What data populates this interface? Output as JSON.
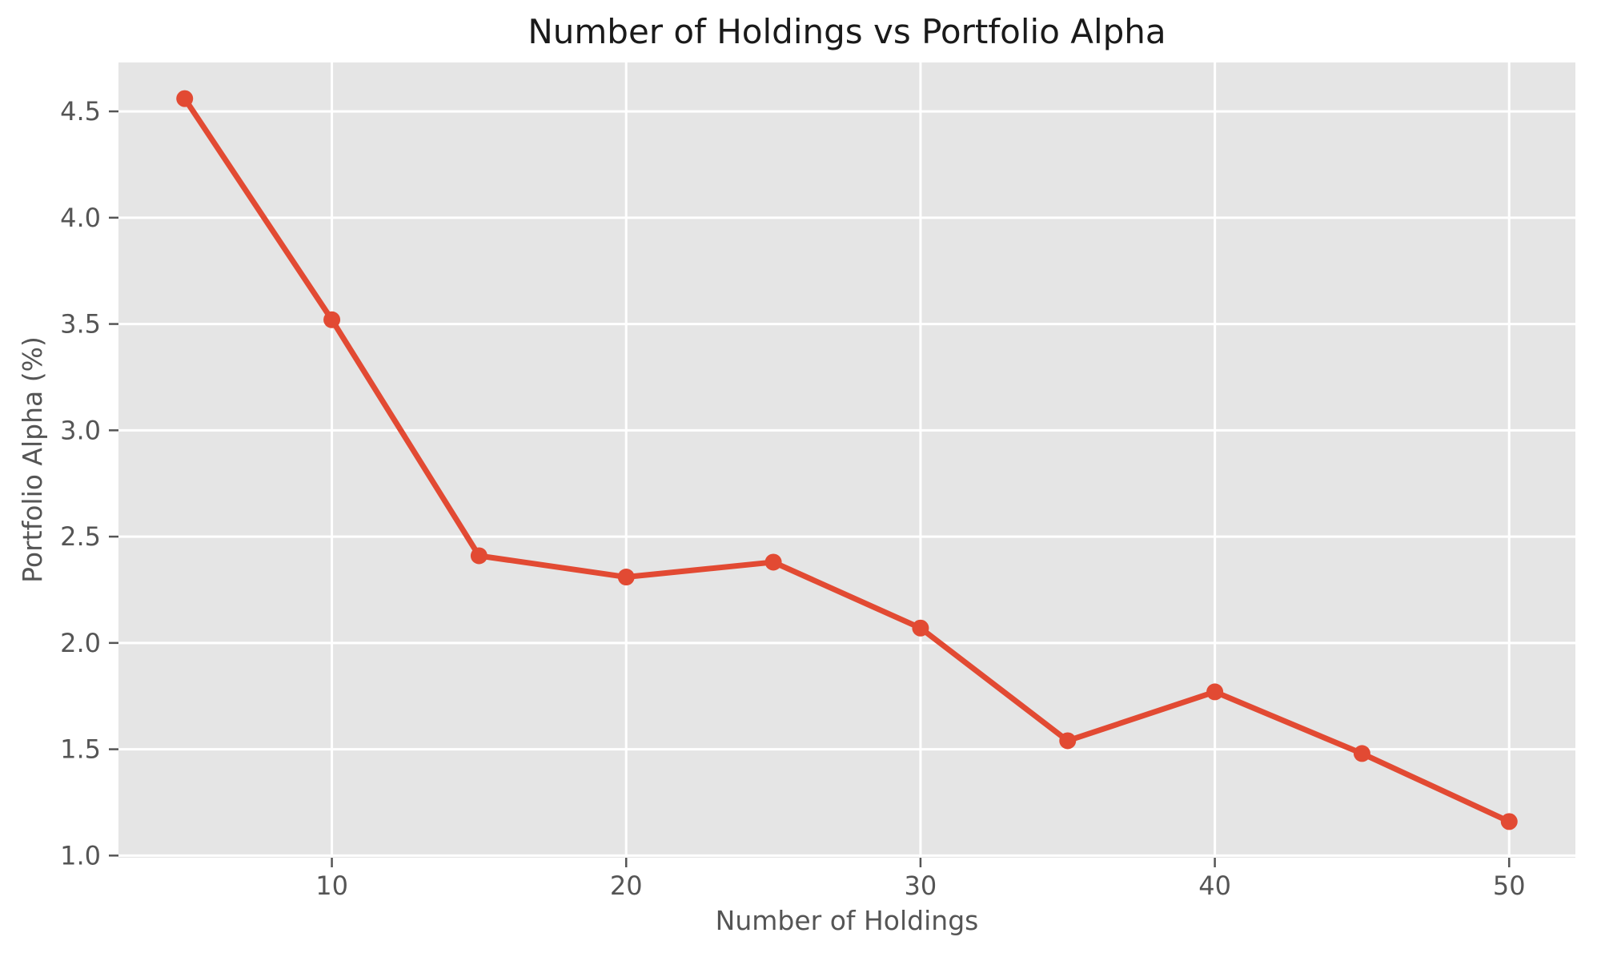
{
  "chart_data": {
    "type": "line",
    "title": "Number of Holdings vs Portfolio Alpha",
    "xlabel": "Number of Holdings",
    "ylabel": "Portfolio Alpha (%)",
    "series": [
      {
        "name": "Portfolio Alpha",
        "x": [
          5,
          10,
          15,
          20,
          25,
          30,
          35,
          40,
          45,
          50
        ],
        "values": [
          4.56,
          3.52,
          2.41,
          2.31,
          2.38,
          2.07,
          1.54,
          1.77,
          1.48,
          1.16
        ]
      }
    ],
    "xlim": [
      2.75,
      52.25
    ],
    "ylim": [
      0.99,
      4.73
    ],
    "x_ticks": [
      10,
      20,
      30,
      40,
      50
    ],
    "x_tick_labels": [
      "10",
      "20",
      "30",
      "40",
      "50"
    ],
    "y_ticks": [
      1.0,
      1.5,
      2.0,
      2.5,
      3.0,
      3.5,
      4.0,
      4.5
    ],
    "y_tick_labels": [
      "1.0",
      "1.5",
      "2.0",
      "2.5",
      "3.0",
      "3.5",
      "4.0",
      "4.5"
    ],
    "grid": true,
    "legend": false,
    "style": {
      "line_color": "#E24A33",
      "marker_color": "#E24A33",
      "plot_bg": "#E5E5E5",
      "grid_color": "#FFFFFF",
      "tick_text_color": "#555555",
      "axis_label_color": "#555555",
      "title_color": "#1A1A1A",
      "figure_bg": "#FFFFFF"
    }
  }
}
